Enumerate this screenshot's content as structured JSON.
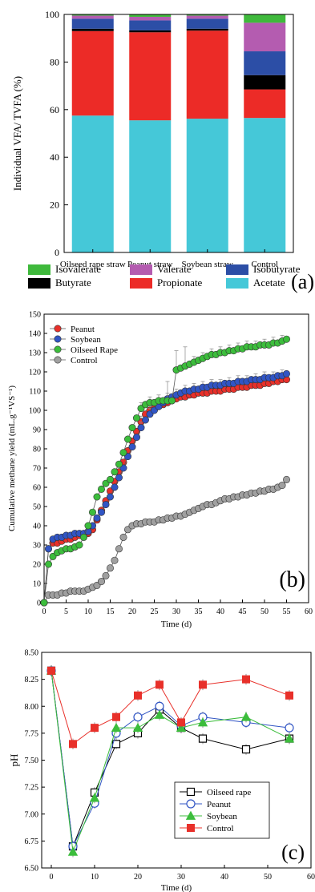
{
  "chart_data": [
    {
      "type": "bar",
      "panel_label": "(a)",
      "ylabel": "Individual VFA/ TVFA (%)",
      "ylim": [
        0,
        100
      ],
      "yticks": [
        0,
        20,
        40,
        60,
        80,
        100
      ],
      "categories": [
        "Oilseed rape straw",
        "Peanut straw",
        "Soybean straw",
        "Control"
      ],
      "series": [
        {
          "name": "Acetate",
          "color": "#45c8d8",
          "values": [
            57.5,
            55.5,
            56.2,
            56.5
          ]
        },
        {
          "name": "Propionate",
          "color": "#ec2b27",
          "values": [
            35.5,
            37.0,
            37.0,
            12.0
          ]
        },
        {
          "name": "Butyrate",
          "color": "#000000",
          "values": [
            1.0,
            0.8,
            0.8,
            6.0
          ]
        },
        {
          "name": "Isobutyrate",
          "color": "#2c4ea6",
          "values": [
            4.2,
            4.2,
            4.2,
            10.0
          ]
        },
        {
          "name": "Valerate",
          "color": "#b45cb0",
          "values": [
            1.3,
            1.5,
            1.3,
            12.0
          ]
        },
        {
          "name": "Isovalerate",
          "color": "#3fb93c",
          "values": [
            0.5,
            1.0,
            0.5,
            3.5
          ]
        }
      ],
      "legend_rows": [
        [
          "Isovalerate",
          "Valerate",
          "Isobutyrate"
        ],
        [
          "Butyrate",
          "Propionate",
          "Acetate"
        ]
      ]
    },
    {
      "type": "line",
      "panel_label": "(b)",
      "xlabel": "Time (d)",
      "ylabel": "Cumulative methane yield (mL.g⁻¹VS⁻¹)",
      "xlim": [
        0,
        60
      ],
      "ylim": [
        0,
        150
      ],
      "xticks": [
        0,
        5,
        10,
        15,
        20,
        25,
        30,
        35,
        40,
        45,
        50,
        55,
        60
      ],
      "yticks": [
        0,
        10,
        20,
        30,
        40,
        50,
        60,
        70,
        80,
        90,
        100,
        110,
        120,
        130,
        140,
        150
      ],
      "x": [
        0,
        1,
        2,
        3,
        4,
        5,
        6,
        7,
        8,
        9,
        10,
        11,
        12,
        13,
        14,
        15,
        16,
        17,
        18,
        19,
        20,
        21,
        22,
        23,
        24,
        25,
        26,
        27,
        28,
        29,
        30,
        31,
        32,
        33,
        34,
        35,
        36,
        37,
        38,
        39,
        40,
        41,
        42,
        43,
        44,
        45,
        46,
        47,
        48,
        49,
        50,
        51,
        52,
        53,
        54,
        55
      ],
      "series": [
        {
          "name": "Peanut",
          "color": "#e8302a",
          "values": [
            0,
            28,
            31,
            31,
            32,
            33,
            33,
            34,
            35,
            35,
            36,
            38,
            43,
            48,
            53,
            58,
            63,
            68,
            73,
            79,
            84,
            89,
            94,
            98,
            100,
            101,
            102,
            103,
            104,
            105,
            106,
            107,
            107,
            108,
            108,
            109,
            109,
            109,
            110,
            110,
            110,
            111,
            111,
            111,
            112,
            112,
            112,
            113,
            113,
            113,
            114,
            114,
            115,
            115,
            116,
            116
          ]
        },
        {
          "name": "Soybean",
          "color": "#3155c4",
          "values": [
            0,
            28,
            33,
            34,
            34,
            35,
            35,
            36,
            36,
            36,
            37,
            40,
            44,
            47,
            51,
            55,
            60,
            65,
            70,
            76,
            81,
            86,
            91,
            95,
            98,
            100,
            102,
            104,
            106,
            107,
            108,
            109,
            110,
            110,
            111,
            111,
            112,
            112,
            113,
            113,
            113,
            114,
            114,
            114,
            115,
            115,
            115,
            116,
            116,
            116,
            117,
            117,
            117,
            118,
            118,
            119
          ]
        },
        {
          "name": "Oilseed Rape",
          "color": "#3cbd3c",
          "values": [
            0,
            20,
            24,
            26,
            27,
            28,
            28,
            29,
            30,
            34,
            40,
            47,
            55,
            59,
            62,
            64,
            68,
            72,
            78,
            85,
            91,
            96,
            101,
            103,
            104,
            104,
            105,
            105,
            105,
            105,
            121,
            122,
            123,
            124,
            125,
            126,
            127,
            128,
            129,
            129,
            130,
            130,
            131,
            131,
            132,
            132,
            133,
            133,
            133,
            134,
            134,
            134,
            135,
            135,
            136,
            137
          ]
        },
        {
          "name": "Control",
          "color": "#a0a0a0",
          "values": [
            0,
            4,
            4,
            4,
            5,
            5,
            6,
            6,
            6,
            6,
            7,
            8,
            9,
            11,
            14,
            18,
            22,
            28,
            34,
            38,
            40,
            41,
            41,
            42,
            42,
            42,
            43,
            43,
            44,
            44,
            45,
            45,
            46,
            47,
            48,
            49,
            50,
            51,
            51,
            52,
            53,
            54,
            54,
            55,
            55,
            56,
            56,
            57,
            57,
            58,
            58,
            59,
            59,
            60,
            61,
            64
          ]
        }
      ]
    },
    {
      "type": "line",
      "panel_label": "(c)",
      "xlabel": "Time (d)",
      "ylabel": "pH",
      "xlim": [
        0,
        60
      ],
      "ylim": [
        6.5,
        8.5
      ],
      "xticks": [
        0,
        10,
        20,
        30,
        40,
        50,
        60
      ],
      "xtick_labels": [
        "0",
        "10",
        "20",
        "30",
        "40",
        "50",
        "60"
      ],
      "yticks": [
        6.5,
        6.75,
        7.0,
        7.25,
        7.5,
        7.75,
        8.0,
        8.25,
        8.5
      ],
      "ytick_labels": [
        "6.50",
        "6.75",
        "7.00",
        "7.25",
        "7.50",
        "7.75",
        "8.00",
        "8.25",
        "8.50"
      ],
      "x": [
        0,
        5,
        10,
        15,
        20,
        25,
        30,
        35,
        45,
        55
      ],
      "series": [
        {
          "name": "Oilseed rape",
          "color": "#000000",
          "marker": "square-open",
          "values": [
            8.33,
            6.7,
            7.2,
            7.65,
            7.75,
            7.97,
            7.8,
            7.7,
            7.6,
            7.7
          ]
        },
        {
          "name": "Peanut",
          "color": "#3155c4",
          "marker": "circle-open",
          "values": [
            8.33,
            6.7,
            7.1,
            7.75,
            7.9,
            8.0,
            7.82,
            7.9,
            7.85,
            7.8
          ]
        },
        {
          "name": "Soybean",
          "color": "#3cbd3c",
          "marker": "triangle",
          "values": [
            8.33,
            6.65,
            7.15,
            7.8,
            7.8,
            7.92,
            7.8,
            7.85,
            7.9,
            7.7
          ]
        },
        {
          "name": "Control",
          "color": "#e8302a",
          "marker": "square",
          "values": [
            8.33,
            7.65,
            7.8,
            7.9,
            8.1,
            8.2,
            7.85,
            8.2,
            8.25,
            8.1
          ]
        }
      ]
    }
  ]
}
